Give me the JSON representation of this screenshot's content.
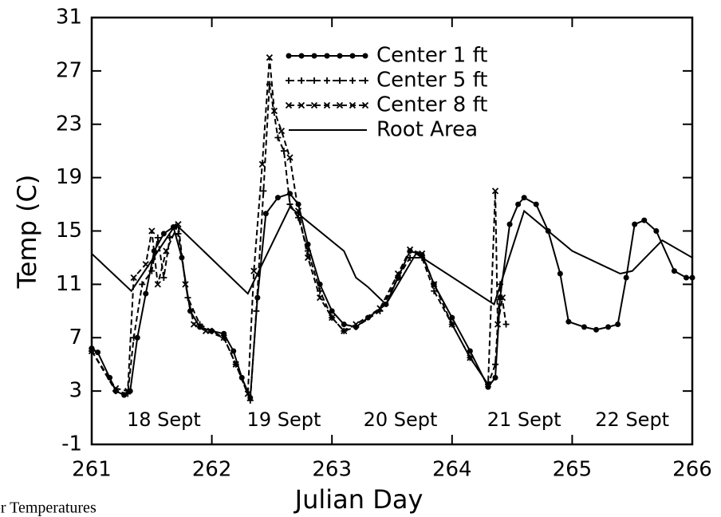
{
  "chart_data": {
    "type": "line",
    "xlabel": "Julian Day",
    "ylabel": "Temp (C)",
    "xlim": [
      261,
      266
    ],
    "xticks": [
      261,
      262,
      263,
      264,
      265,
      266
    ],
    "ylim": [
      -1,
      31
    ],
    "yticks": [
      -1,
      3,
      7,
      11,
      15,
      19,
      23,
      27,
      31
    ],
    "legend": "upper center",
    "annotations": [
      "18 Sept",
      "19 Sept",
      "20 Sept",
      "21 Sept",
      "22 Sept"
    ],
    "caption": "er Temperatures",
    "series": [
      {
        "name": "Center 1 ft",
        "color": "#000000",
        "marker": "circle",
        "dash": "solid",
        "x": [
          261,
          261.05,
          261.15,
          261.2,
          261.27,
          261.32,
          261.38,
          261.45,
          261.52,
          261.6,
          261.68,
          261.75,
          261.82,
          261.9,
          262.0,
          262.1,
          262.18,
          262.25,
          262.32,
          262.38,
          262.45,
          262.55,
          262.65,
          262.72,
          262.8,
          262.9,
          263.0,
          263.1,
          263.2,
          263.3,
          263.45,
          263.55,
          263.65,
          263.75,
          263.85,
          264.0,
          264.15,
          264.3,
          264.36,
          264.4,
          264.48,
          264.55,
          264.6,
          264.7,
          264.8,
          264.9,
          264.97,
          265.1,
          265.2,
          265.3,
          265.38,
          265.45,
          265.52,
          265.6,
          265.7,
          265.85,
          265.95,
          266
        ],
        "values": [
          6.2,
          5.9,
          4,
          3,
          2.7,
          3,
          7,
          10.3,
          13.5,
          14.8,
          15.3,
          13,
          9,
          7.8,
          7.5,
          7.3,
          6,
          4,
          2.5,
          10,
          16.3,
          17.5,
          17.8,
          17,
          14,
          11,
          9,
          8,
          7.8,
          8.5,
          9.5,
          11.5,
          13.5,
          13.2,
          11,
          8.5,
          6,
          3.3,
          4,
          10,
          15.5,
          17,
          17.5,
          17,
          15,
          11.8,
          8.2,
          7.8,
          7.6,
          7.8,
          8,
          11.5,
          15.5,
          15.8,
          15,
          12,
          11.5,
          11.5
        ]
      },
      {
        "name": "Center 5 ft",
        "color": "#000000",
        "marker": "plus",
        "dash": "dashed",
        "x": [
          261,
          261.2,
          261.3,
          261.35,
          261.42,
          261.5,
          261.55,
          261.6,
          261.65,
          261.72,
          261.8,
          261.9,
          262.0,
          262.1,
          262.2,
          262.32,
          262.37,
          262.43,
          262.48,
          262.55,
          262.6,
          262.65,
          262.72,
          262.8,
          262.9,
          263.0,
          263.1,
          263.2,
          263.4,
          263.55,
          263.65,
          263.75,
          263.85,
          264.0,
          264.15,
          264.3,
          264.36,
          264.4,
          264.45
        ],
        "values": [
          6,
          3,
          2.8,
          7,
          11,
          12,
          14.5,
          11.5,
          14.5,
          14.8,
          10,
          8,
          7.5,
          7,
          5,
          2.3,
          9,
          18,
          26,
          22,
          21,
          17,
          16,
          13.5,
          10.5,
          8.5,
          7.5,
          7.8,
          9,
          11.5,
          13,
          13,
          10.5,
          8,
          5.5,
          3.5,
          5,
          11,
          8
        ]
      },
      {
        "name": "Center 8 ft",
        "color": "#000000",
        "marker": "x",
        "dash": "dashed",
        "x": [
          261,
          261.2,
          261.3,
          261.35,
          261.45,
          261.5,
          261.55,
          261.62,
          261.72,
          261.78,
          261.85,
          261.95,
          262.1,
          262.2,
          262.3,
          262.35,
          262.42,
          262.48,
          262.52,
          262.58,
          262.65,
          262.72,
          262.8,
          262.9,
          263.0,
          263.1,
          263.2,
          263.4,
          263.55,
          263.65,
          263.75,
          263.85,
          264.0,
          264.15,
          264.3,
          264.36,
          264.38,
          264.42
        ],
        "values": [
          6,
          3.2,
          3,
          11.5,
          12.5,
          15,
          11,
          13.5,
          15.5,
          11,
          8,
          7.5,
          7,
          5,
          2.8,
          12,
          20,
          28,
          24,
          22.5,
          20.5,
          16.5,
          13,
          10,
          8.5,
          7.5,
          8,
          9.2,
          11.8,
          13.6,
          13.3,
          11,
          8,
          5.5,
          3.5,
          18,
          8,
          10
        ]
      },
      {
        "name": "Root Area",
        "color": "#000000",
        "marker": null,
        "dash": "solid",
        "x": [
          261,
          261.33,
          261.7,
          262.3,
          262.65,
          263.1,
          263.2,
          263.3,
          263.45,
          263.7,
          264.35,
          264.6,
          265.0,
          265.4,
          265.5,
          265.75,
          266
        ],
        "values": [
          13.3,
          10.5,
          15.5,
          10.3,
          16.8,
          13.5,
          11.5,
          10.8,
          9.5,
          13.3,
          9.5,
          16.5,
          13.5,
          11.8,
          12,
          14.3,
          13
        ]
      }
    ]
  }
}
